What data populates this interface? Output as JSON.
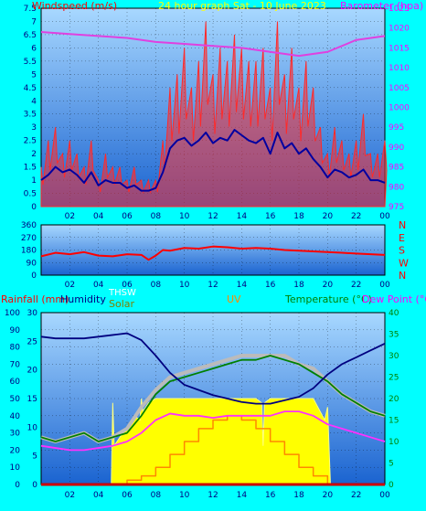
{
  "top_panel": {
    "title": "24 hour graph Sat - 10 June 2023",
    "left_axis_label": "Windspeed (m/s)",
    "right_axis_label": "Barometer (hpa)",
    "left_ticks": [
      "0",
      "0.5",
      "1",
      "1.5",
      "2",
      "2.5",
      "3",
      "3.5",
      "4",
      "4.5",
      "5",
      "5.5",
      "6",
      "6.5",
      "7",
      "7.5"
    ],
    "right_ticks": [
      "975",
      "980",
      "985",
      "990",
      "995",
      "1000",
      "1005",
      "1010",
      "1015",
      "1020",
      "1025"
    ],
    "x_ticks": [
      "02",
      "04",
      "06",
      "08",
      "10",
      "12",
      "14",
      "16",
      "18",
      "20",
      "22",
      "00"
    ]
  },
  "mid_panel": {
    "left_ticks": [
      "0",
      "90",
      "180",
      "270",
      "360"
    ],
    "direction_labels": [
      "N",
      "W",
      "S",
      "E",
      "N"
    ],
    "x_ticks": [
      "02",
      "04",
      "06",
      "08",
      "10",
      "12",
      "14",
      "16",
      "18",
      "20",
      "22",
      "00"
    ]
  },
  "bottom_panel": {
    "label_rain": "Rainfall (mm)",
    "label_humidity": "Humidity",
    "label_solar": "Solar",
    "label_thsw": "THSW",
    "label_uv": "UV",
    "label_temp": "Temperature (°C)",
    "label_dew": "Dew Point (°C)",
    "left_ticks_humidity": [
      "0",
      "10",
      "20",
      "30",
      "40",
      "50",
      "60",
      "70",
      "80",
      "90",
      "100"
    ],
    "left_ticks_rain": [
      "0",
      "5",
      "10",
      "15",
      "20",
      "25",
      "30"
    ],
    "right_ticks": [
      "0",
      "5",
      "10",
      "15",
      "20",
      "25",
      "30",
      "35",
      "40"
    ],
    "x_ticks": [
      "02",
      "04",
      "06",
      "08",
      "10",
      "12",
      "14",
      "16",
      "18",
      "20",
      "22",
      "00"
    ]
  },
  "colors": {
    "page_bg": "#00ffff",
    "plot_bg_top": "#9ed3ff",
    "plot_bg_bottom": "#1f6fd8",
    "wind_gust": "#ff2a2a",
    "wind_avg": "#0000a0",
    "barometer": "#e040e0",
    "wind_dir": "#ff0000",
    "humidity": "#000080",
    "temperature": "#008000",
    "thsw": "#bbbbbb",
    "dew_point": "#ff30ff",
    "solar": "#ffff00",
    "uv": "#ff8800",
    "rain": "#cc0000",
    "title_text": "#ffff00",
    "left_label": "#ff0000",
    "right_label": "#ff00ff",
    "dir_label": "#ff0000"
  },
  "chart_data": [
    {
      "type": "line",
      "title": "24 hour graph Sat - 10 June 2023",
      "xlabel": "",
      "x_ticks": [
        "02",
        "04",
        "06",
        "08",
        "10",
        "12",
        "14",
        "16",
        "18",
        "20",
        "22",
        "00"
      ],
      "series": [
        {
          "name": "Windspeed (m/s)",
          "axis": "left",
          "style": "gust",
          "x": [
            0,
            0.5,
            1,
            1.5,
            2,
            2.5,
            3,
            3.5,
            4,
            4.5,
            5,
            5.5,
            6,
            6.5,
            7,
            7.5,
            8,
            8.5,
            9,
            9.5,
            10,
            10.5,
            11,
            11.5,
            12,
            12.5,
            13,
            13.5,
            14,
            14.5,
            15,
            15.5,
            16,
            16.5,
            17,
            17.5,
            18,
            18.5,
            19,
            19.5,
            20,
            20.5,
            21,
            21.5,
            22,
            22.5,
            23,
            23.5,
            24
          ],
          "values": [
            1.5,
            2.5,
            3.0,
            2.0,
            2.5,
            2.0,
            1.5,
            2.5,
            1.0,
            2.0,
            1.5,
            1.5,
            1.0,
            1.5,
            1.0,
            1.0,
            1.0,
            2.5,
            4.5,
            5.0,
            6.0,
            4.5,
            5.5,
            7.0,
            5.0,
            6.0,
            5.5,
            6.5,
            6.0,
            5.5,
            5.5,
            6.0,
            4.5,
            7.0,
            5.0,
            6.0,
            4.5,
            5.5,
            4.5,
            3.0,
            2.0,
            3.0,
            2.5,
            2.0,
            2.5,
            3.5,
            2.0,
            2.0,
            2.5
          ]
        },
        {
          "name": "Average windspeed",
          "axis": "left",
          "style": "avg",
          "x": [
            0,
            0.5,
            1,
            1.5,
            2,
            2.5,
            3,
            3.5,
            4,
            4.5,
            5,
            5.5,
            6,
            6.5,
            7,
            7.5,
            8,
            8.5,
            9,
            9.5,
            10,
            10.5,
            11,
            11.5,
            12,
            12.5,
            13,
            13.5,
            14,
            14.5,
            15,
            15.5,
            16,
            16.5,
            17,
            17.5,
            18,
            18.5,
            19,
            19.5,
            20,
            20.5,
            21,
            21.5,
            22,
            22.5,
            23,
            23.5,
            24
          ],
          "values": [
            1.0,
            1.2,
            1.5,
            1.3,
            1.4,
            1.2,
            0.9,
            1.3,
            0.8,
            1.0,
            0.9,
            0.9,
            0.7,
            0.8,
            0.6,
            0.6,
            0.7,
            1.3,
            2.2,
            2.5,
            2.6,
            2.3,
            2.5,
            2.8,
            2.4,
            2.6,
            2.5,
            2.9,
            2.7,
            2.5,
            2.4,
            2.6,
            2.0,
            2.8,
            2.2,
            2.4,
            2.0,
            2.2,
            1.8,
            1.5,
            1.1,
            1.4,
            1.3,
            1.1,
            1.2,
            1.4,
            1.0,
            1.0,
            0.9
          ]
        },
        {
          "name": "Barometer (hpa)",
          "axis": "right",
          "x": [
            0,
            2,
            4,
            6,
            8,
            10,
            12,
            14,
            16,
            18,
            20,
            22,
            24
          ],
          "values": [
            1019,
            1018.5,
            1018,
            1017.5,
            1016.5,
            1016,
            1015.5,
            1015,
            1014,
            1013,
            1014,
            1017,
            1018
          ]
        }
      ],
      "ylim_left": [
        0,
        7.5
      ],
      "ylim_right": [
        975,
        1025
      ]
    },
    {
      "type": "line",
      "ylabel": "",
      "x_ticks": [
        "02",
        "04",
        "06",
        "08",
        "10",
        "12",
        "14",
        "16",
        "18",
        "20",
        "22",
        "00"
      ],
      "series": [
        {
          "name": "Wind direction",
          "x": [
            0,
            1,
            2,
            3,
            4,
            5,
            6,
            7,
            7.5,
            8,
            8.5,
            9,
            10,
            11,
            12,
            13,
            14,
            15,
            16,
            17,
            18,
            19,
            20,
            21,
            22,
            23,
            24
          ],
          "values": [
            135,
            160,
            150,
            165,
            140,
            135,
            150,
            145,
            110,
            140,
            180,
            175,
            195,
            190,
            205,
            200,
            190,
            195,
            190,
            180,
            175,
            170,
            165,
            160,
            155,
            150,
            145
          ]
        }
      ],
      "ylim": [
        0,
        360
      ]
    },
    {
      "type": "line",
      "x_ticks": [
        "02",
        "04",
        "06",
        "08",
        "10",
        "12",
        "14",
        "16",
        "18",
        "20",
        "22",
        "00"
      ],
      "series": [
        {
          "name": "Humidity",
          "axis": "left_humidity",
          "x": [
            0,
            1,
            2,
            3,
            4,
            5,
            6,
            7,
            8,
            9,
            10,
            11,
            12,
            13,
            14,
            15,
            16,
            17,
            18,
            19,
            20,
            21,
            22,
            23,
            24
          ],
          "values": [
            86,
            85,
            85,
            85,
            86,
            87,
            88,
            84,
            75,
            65,
            58,
            55,
            52,
            50,
            48,
            47,
            47,
            49,
            51,
            56,
            64,
            70,
            74,
            78,
            82
          ]
        },
        {
          "name": "Temperature (°C)",
          "axis": "right",
          "x": [
            0,
            1,
            2,
            3,
            4,
            5,
            6,
            7,
            8,
            9,
            10,
            11,
            12,
            13,
            14,
            15,
            16,
            17,
            18,
            19,
            20,
            21,
            22,
            23,
            24
          ],
          "values": [
            11,
            10,
            11,
            12,
            10,
            11,
            12,
            16,
            21,
            24,
            25,
            26,
            27,
            28,
            29,
            29,
            30,
            29,
            28,
            26,
            24,
            21,
            19,
            17,
            16
          ]
        },
        {
          "name": "THSW",
          "axis": "right",
          "x": [
            0,
            1,
            2,
            3,
            4,
            5,
            6,
            7,
            8,
            9,
            10,
            11,
            12,
            13,
            14,
            15,
            16,
            17,
            18,
            19,
            20,
            21,
            22,
            23,
            24
          ],
          "values": [
            11,
            10,
            11,
            12,
            10,
            11,
            13,
            18,
            22,
            25,
            26,
            27,
            28,
            29,
            30,
            30,
            30,
            30,
            28,
            27,
            24,
            21,
            19,
            17,
            16
          ]
        },
        {
          "name": "Dew Point (°C)",
          "axis": "right",
          "x": [
            0,
            1,
            2,
            3,
            4,
            5,
            6,
            7,
            8,
            9,
            10,
            11,
            12,
            13,
            14,
            15,
            16,
            17,
            18,
            19,
            20,
            21,
            22,
            23,
            24
          ],
          "values": [
            9,
            8.5,
            8,
            8,
            8.5,
            9,
            10,
            12,
            15,
            16.5,
            16,
            16,
            15.5,
            16,
            16,
            16,
            16,
            17,
            17,
            16,
            14,
            13,
            12,
            11,
            10
          ]
        },
        {
          "name": "Solar",
          "axis": "right",
          "x": [
            0,
            4.9,
            5,
            5.1,
            5.5,
            6,
            6.5,
            6.9,
            7,
            7.1,
            7.5,
            8,
            9,
            10,
            11,
            12,
            13,
            14,
            15,
            15.4,
            15.5,
            15.6,
            16,
            17,
            18,
            19,
            19.8,
            20,
            20.2,
            24
          ],
          "values": [
            0,
            0,
            19,
            9,
            11,
            13,
            16,
            15,
            20,
            17,
            19,
            20,
            20,
            20,
            20,
            20,
            20,
            20,
            20,
            19,
            9,
            19,
            20,
            20,
            20,
            20,
            15,
            18,
            0,
            0
          ]
        },
        {
          "name": "UV",
          "axis": "right",
          "x": [
            0,
            5,
            6,
            7,
            8,
            9,
            10,
            11,
            12,
            13,
            14,
            15,
            16,
            17,
            18,
            19,
            20,
            24
          ],
          "values": [
            0,
            0,
            1,
            2,
            4,
            7,
            10,
            13,
            15,
            16,
            15,
            13,
            10,
            7,
            4,
            2,
            0,
            0
          ]
        },
        {
          "name": "Rainfall (mm)",
          "axis": "left_rain",
          "x": [
            0,
            24
          ],
          "values": [
            0,
            0
          ]
        }
      ],
      "ylim_humidity": [
        0,
        100
      ],
      "ylim_rain": [
        0,
        30
      ],
      "ylim_right": [
        0,
        40
      ]
    }
  ]
}
